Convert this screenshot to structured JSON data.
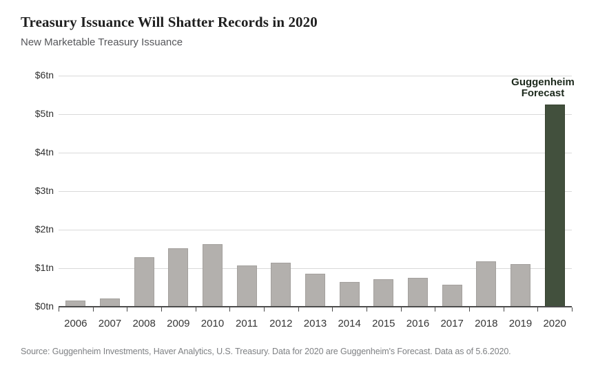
{
  "header": {
    "title": "Treasury Issuance Will Shatter Records in 2020",
    "subtitle": "New Marketable Treasury Issuance"
  },
  "annotation": {
    "line1": "Guggenheim",
    "line2": "Forecast"
  },
  "footer": {
    "source": "Source: Guggenheim Investments, Haver Analytics, U.S. Treasury. Data for 2020 are Guggenheim's Forecast. Data as of 5.6.2020."
  },
  "colors": {
    "bar_gray": "#b3b0ad",
    "bar_gray_border": "#a3a09d",
    "bar_highlight": "#42503d",
    "gridline": "#d9d9d9",
    "axis": "#4a4a4a",
    "title_text": "#1f1f1f",
    "subtitle_text": "#55565a",
    "source_text": "#7e8083",
    "forecast_label_text": "#1c291c"
  },
  "chart_data": {
    "type": "bar",
    "title": "Treasury Issuance Will Shatter Records in 2020",
    "subtitle": "New Marketable Treasury Issuance",
    "unit": "trillion USD",
    "categories": [
      "2006",
      "2007",
      "2008",
      "2009",
      "2010",
      "2011",
      "2012",
      "2013",
      "2014",
      "2015",
      "2016",
      "2017",
      "2018",
      "2019",
      "2020"
    ],
    "values": [
      0.16,
      0.22,
      1.29,
      1.51,
      1.63,
      1.08,
      1.14,
      0.85,
      0.65,
      0.72,
      0.75,
      0.58,
      1.18,
      1.1,
      5.25
    ],
    "ylim": [
      0,
      6
    ],
    "ytick_labels": [
      "$0tn",
      "$1tn",
      "$2tn",
      "$3tn",
      "$4tn",
      "$5tn",
      "$6tn"
    ],
    "grid": "horizontal",
    "legend": "none",
    "bar_color": "#b3b0ad",
    "highlight": {
      "category": "2020",
      "color": "#42503d",
      "label": "Guggenheim Forecast"
    }
  }
}
